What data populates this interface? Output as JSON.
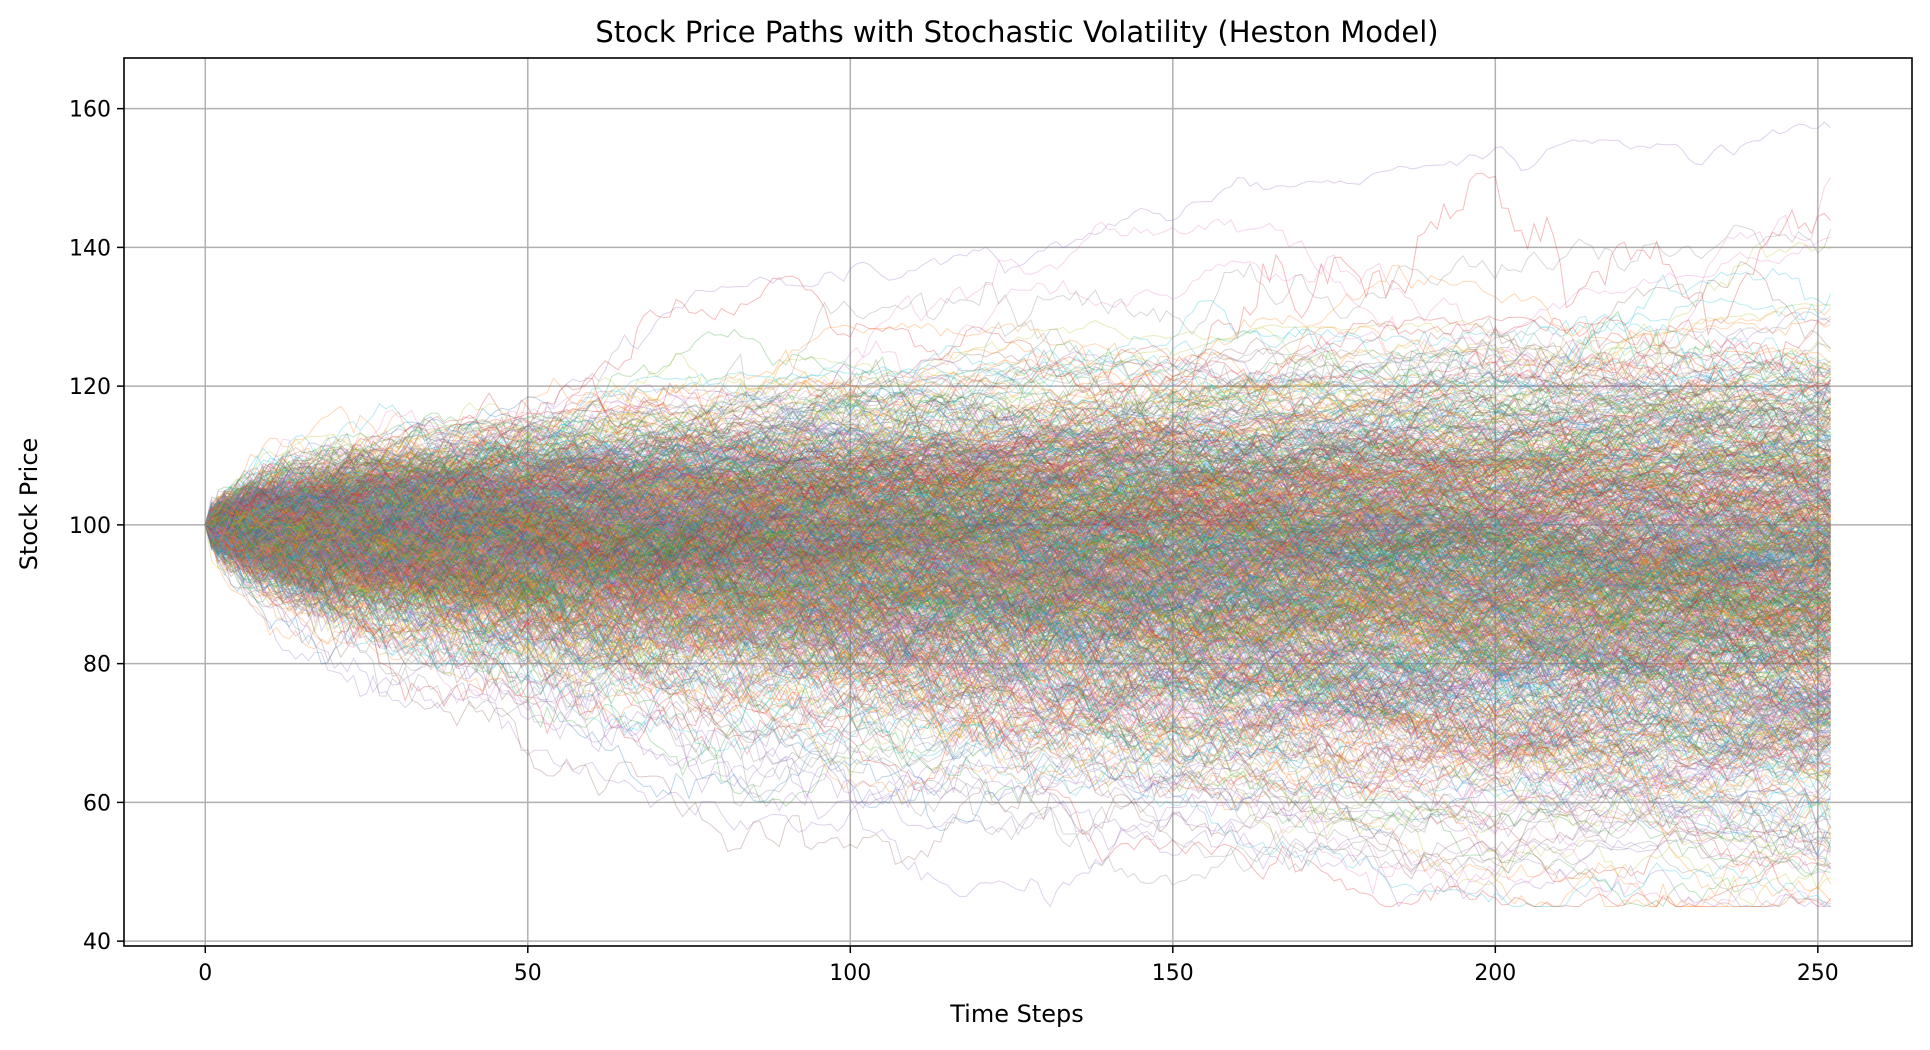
{
  "chart_data": {
    "type": "line",
    "title": "Stock Price Paths with Stochastic Volatility (Heston Model)",
    "xlabel": "Time Steps",
    "ylabel": "Stock Price",
    "xlim": [
      -12.6,
      264.6
    ],
    "ylim": [
      39.3,
      167.3
    ],
    "xticks": [
      0,
      50,
      100,
      150,
      200,
      250
    ],
    "yticks": [
      40,
      60,
      80,
      100,
      120,
      140,
      160
    ],
    "grid": true,
    "legend": "none",
    "series_count": 1000,
    "n_steps": 252,
    "s0": 100,
    "final_price_range": [
      49,
      161
    ],
    "colors": [
      "#1f77b4",
      "#ff7f0e",
      "#2ca02c",
      "#d62728",
      "#9467bd",
      "#8c564b",
      "#e377c2",
      "#7f7f7f",
      "#bcbd22",
      "#17becf"
    ]
  }
}
